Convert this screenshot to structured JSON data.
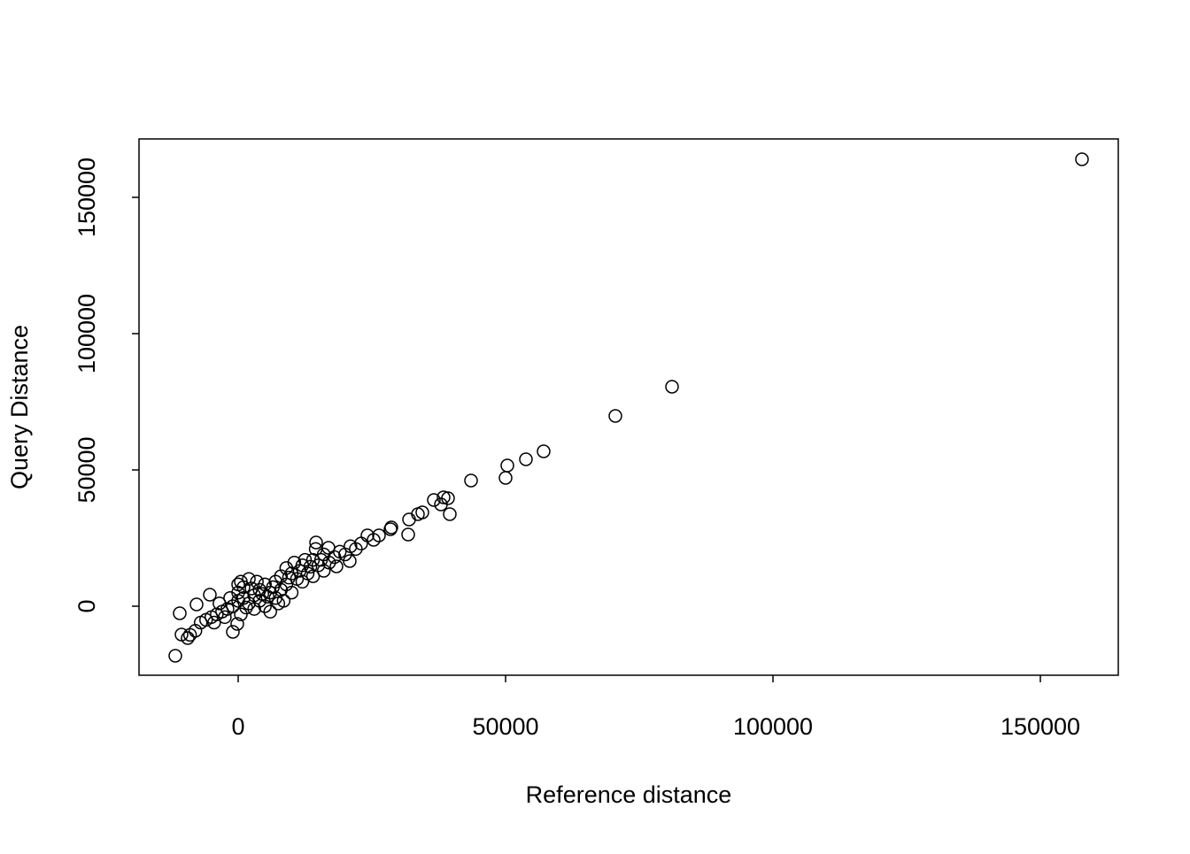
{
  "chart_data": {
    "type": "scatter",
    "xlabel": "Reference distance",
    "ylabel": "Query Distance",
    "color": "#000000",
    "xlim": [
      -18543,
      164570
    ],
    "ylim": [
      -25325,
      171429
    ],
    "xticks": [
      0,
      50000,
      100000,
      150000
    ],
    "yticks": [
      0,
      50000,
      100000,
      150000
    ],
    "x": [
      157781,
      81126,
      70530,
      57119,
      53808,
      50331,
      50000,
      43543,
      39570,
      39238,
      38410,
      37914,
      36589,
      34437,
      33609,
      31954,
      31788,
      28477,
      28642,
      26325,
      24172,
      25331,
      -11755,
      -10927,
      -10596,
      -9437,
      -7781,
      -5298,
      -993,
      -166,
      14570,
      16887,
      20861,
      18377,
      -9000,
      -8000,
      -7000,
      -6000,
      -5000,
      -4000,
      -3000,
      -2000,
      -1000,
      0,
      0,
      0,
      500,
      1000,
      1000,
      2000,
      2000,
      3000,
      3000,
      4000,
      4000,
      5000,
      5000,
      6000,
      6000,
      7000,
      7000,
      8000,
      8000,
      9000,
      9000,
      10000,
      10000,
      11000,
      12000,
      12000,
      13000,
      14000,
      14000,
      15000,
      16000,
      16000,
      17000,
      18000,
      19000,
      20000,
      21000,
      22000,
      23000,
      1500,
      2500,
      3500,
      4500,
      5500,
      6500,
      7500,
      8500,
      9500,
      11500,
      13500,
      15500,
      -2500,
      -4500,
      -3500,
      -1500,
      500,
      10500,
      12500,
      14500
    ],
    "values": [
      163961,
      80519,
      69805,
      56818,
      53896,
      51623,
      47078,
      46104,
      33766,
      39610,
      39935,
      37338,
      38961,
      34416,
      33766,
      31818,
      26299,
      28247,
      28896,
      25974,
      25974,
      24351,
      -18182,
      -2597,
      -10390,
      -11688,
      649,
      4221,
      -9416,
      -6494,
      23377,
      21429,
      16558,
      14610,
      -10500,
      -9000,
      -6000,
      -5000,
      -4000,
      -3000,
      -2000,
      -1000,
      0,
      2000,
      5000,
      8000,
      9000,
      7000,
      3000,
      1000,
      10000,
      4000,
      -1000,
      6000,
      2000,
      8000,
      0,
      5000,
      -2000,
      9000,
      3000,
      11000,
      6000,
      14000,
      8000,
      12000,
      5000,
      10000,
      15000,
      9000,
      12000,
      17000,
      11000,
      15000,
      19000,
      13000,
      16000,
      18000,
      20000,
      19000,
      22000,
      21000,
      23000,
      -500,
      6500,
      9000,
      4500,
      3500,
      7000,
      1000,
      2000,
      10500,
      13000,
      14500,
      17000,
      -4000,
      -6000,
      1000,
      3000,
      -3000,
      16000,
      17000,
      21000
    ]
  }
}
